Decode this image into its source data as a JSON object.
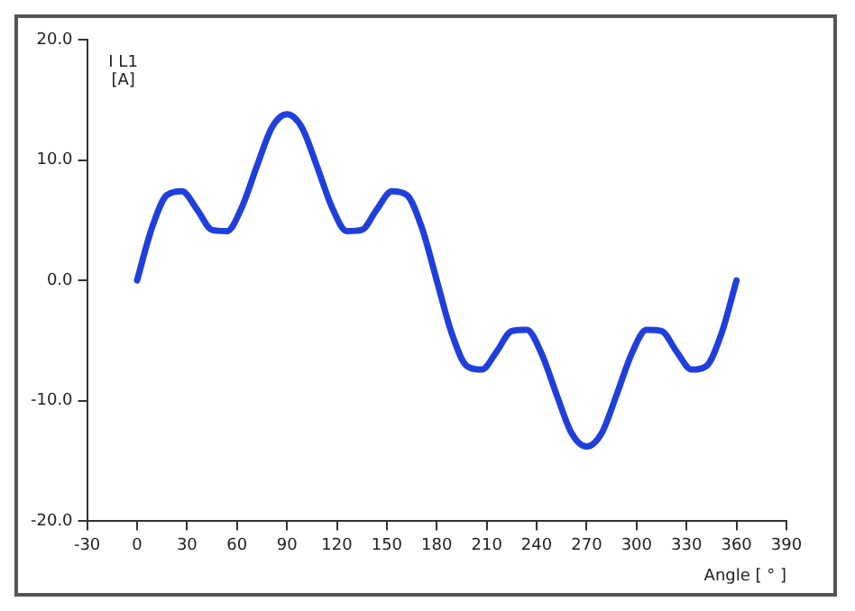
{
  "chart_data": {
    "type": "line",
    "xlabel": "Angle [ ° ]",
    "ylabel": "I L1\n[A]",
    "x": [
      0,
      9,
      18,
      27,
      36,
      45,
      54,
      63,
      72,
      81,
      90,
      99,
      108,
      117,
      126,
      135,
      144,
      153,
      162,
      171,
      180,
      189,
      198,
      207,
      216,
      225,
      234,
      243,
      252,
      261,
      270,
      279,
      288,
      297,
      306,
      315,
      324,
      333,
      342,
      351,
      360
    ],
    "series": [
      {
        "color": "#1f3fdd",
        "values": [
          0,
          4.4,
          7.1,
          7.4,
          5.9,
          4.2,
          4.1,
          6.1,
          9.5,
          12.7,
          13.8,
          12.7,
          9.5,
          6.1,
          4.1,
          4.2,
          5.9,
          7.4,
          7.1,
          4.4,
          0,
          -4.4,
          -7.1,
          -7.4,
          -5.9,
          -4.2,
          -4.1,
          -6.1,
          -9.5,
          -12.7,
          -13.8,
          -12.7,
          -9.5,
          -6.1,
          -4.1,
          -4.2,
          -5.9,
          -7.4,
          -7.1,
          -4.4,
          0
        ]
      }
    ],
    "xlim": [
      -30,
      390
    ],
    "xticks": [
      -30,
      0,
      30,
      60,
      90,
      120,
      150,
      180,
      210,
      240,
      270,
      300,
      330,
      360,
      390
    ],
    "ylim": [
      -20,
      20
    ],
    "yticks": [
      {
        "value": -20,
        "label": "-20.0"
      },
      {
        "value": -10,
        "label": "-10.0"
      },
      {
        "value": 0,
        "label": "0.0"
      },
      {
        "value": 10,
        "label": "10.0"
      },
      {
        "value": 20,
        "label": "20.0"
      }
    ],
    "grid": false,
    "legend": false,
    "marker": "none",
    "line_style": "solid"
  }
}
